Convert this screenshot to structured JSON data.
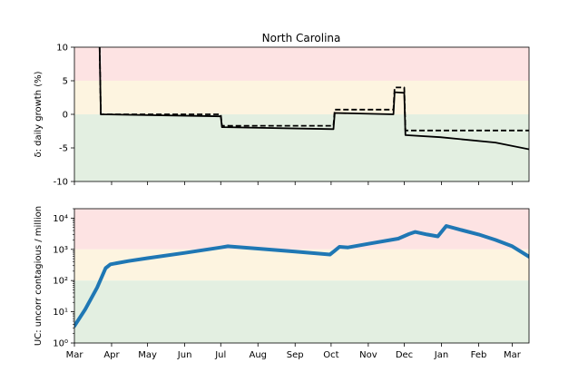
{
  "title": "North Carolina",
  "chart_data": [
    {
      "type": "line",
      "ylabel": "δ: daily growth (%)",
      "ylim": [
        -10,
        10
      ],
      "yticks": [
        -10,
        -5,
        0,
        5,
        10
      ],
      "bands": [
        {
          "from": 5,
          "to": 10,
          "color": "#fde3e3"
        },
        {
          "from": 0,
          "to": 5,
          "color": "#fdf4e0"
        },
        {
          "from": -10,
          "to": 0,
          "color": "#e3efe1"
        }
      ],
      "series": [
        {
          "style": "solid",
          "color": "#000000",
          "points": [
            [
              "2020-03-22",
              10
            ],
            [
              "2020-03-23",
              0
            ],
            [
              "2020-07-01",
              -0.3
            ],
            [
              "2020-07-02",
              -1.9
            ],
            [
              "2020-10-03",
              -2.2
            ],
            [
              "2020-10-04",
              0.2
            ],
            [
              "2020-11-22",
              0.0
            ],
            [
              "2020-11-23",
              3.3
            ],
            [
              "2020-12-01",
              3.2
            ],
            [
              "2020-12-02",
              -3.1
            ],
            [
              "2020-12-31",
              -3.4
            ],
            [
              "2021-02-15",
              -4.2
            ],
            [
              "2021-03-15",
              -5.2
            ]
          ]
        },
        {
          "style": "dashed",
          "color": "#000000",
          "points": [
            [
              "2020-03-22",
              10
            ],
            [
              "2020-03-23",
              0
            ],
            [
              "2020-07-01",
              0.0
            ],
            [
              "2020-07-02",
              -1.7
            ],
            [
              "2020-10-03",
              -1.7
            ],
            [
              "2020-10-04",
              0.7
            ],
            [
              "2020-11-22",
              0.7
            ],
            [
              "2020-11-23",
              4.0
            ],
            [
              "2020-12-01",
              4.0
            ],
            [
              "2020-12-02",
              -2.4
            ],
            [
              "2021-03-15",
              -2.4
            ]
          ]
        }
      ]
    },
    {
      "type": "line",
      "ylabel": "UC: uncorr contagious / million",
      "yscale": "log",
      "ylim": [
        1,
        20000
      ],
      "yticks": [
        1,
        10,
        100,
        1000,
        10000
      ],
      "ytick_labels": [
        "10⁰",
        "10¹",
        "10²",
        "10³",
        "10⁴"
      ],
      "bands": [
        {
          "from": 1000,
          "to": 20000,
          "color": "#fde3e3"
        },
        {
          "from": 100,
          "to": 1000,
          "color": "#fdf4e0"
        },
        {
          "from": 1,
          "to": 100,
          "color": "#e3efe1"
        }
      ],
      "series": [
        {
          "style": "solid",
          "color": "#1f77b4",
          "points": [
            [
              "2020-03-01",
              3.5
            ],
            [
              "2020-03-10",
              12
            ],
            [
              "2020-03-20",
              60
            ],
            [
              "2020-03-27",
              250
            ],
            [
              "2020-03-31",
              330
            ],
            [
              "2020-04-15",
              420
            ],
            [
              "2020-05-01",
              520
            ],
            [
              "2020-06-01",
              770
            ],
            [
              "2020-07-01",
              1150
            ],
            [
              "2020-07-07",
              1250
            ],
            [
              "2020-08-01",
              1050
            ],
            [
              "2020-09-01",
              850
            ],
            [
              "2020-09-30",
              680
            ],
            [
              "2020-10-04",
              900
            ],
            [
              "2020-10-08",
              1200
            ],
            [
              "2020-10-15",
              1150
            ],
            [
              "2020-11-01",
              1500
            ],
            [
              "2020-11-26",
              2200
            ],
            [
              "2020-12-05",
              3100
            ],
            [
              "2020-12-10",
              3600
            ],
            [
              "2020-12-20",
              3000
            ],
            [
              "2020-12-29",
              2600
            ],
            [
              "2021-01-05",
              5600
            ],
            [
              "2021-01-15",
              4400
            ],
            [
              "2021-02-01",
              3000
            ],
            [
              "2021-02-15",
              2000
            ],
            [
              "2021-03-01",
              1250
            ],
            [
              "2021-03-15",
              580
            ]
          ]
        }
      ]
    }
  ],
  "x_axis": {
    "start": "2020-03-01",
    "end": "2021-03-15",
    "ticks": [
      {
        "date": "2020-03-01",
        "label": "Mar"
      },
      {
        "date": "2020-04-01",
        "label": "Apr"
      },
      {
        "date": "2020-05-01",
        "label": "May"
      },
      {
        "date": "2020-06-01",
        "label": "Jun"
      },
      {
        "date": "2020-07-01",
        "label": "Jul"
      },
      {
        "date": "2020-08-01",
        "label": "Aug"
      },
      {
        "date": "2020-09-01",
        "label": "Sep"
      },
      {
        "date": "2020-10-01",
        "label": "Oct"
      },
      {
        "date": "2020-11-01",
        "label": "Nov"
      },
      {
        "date": "2020-12-01",
        "label": "Dec"
      },
      {
        "date": "2021-01-01",
        "label": "Jan"
      },
      {
        "date": "2021-02-01",
        "label": "Feb"
      },
      {
        "date": "2021-03-01",
        "label": "Mar"
      }
    ]
  }
}
